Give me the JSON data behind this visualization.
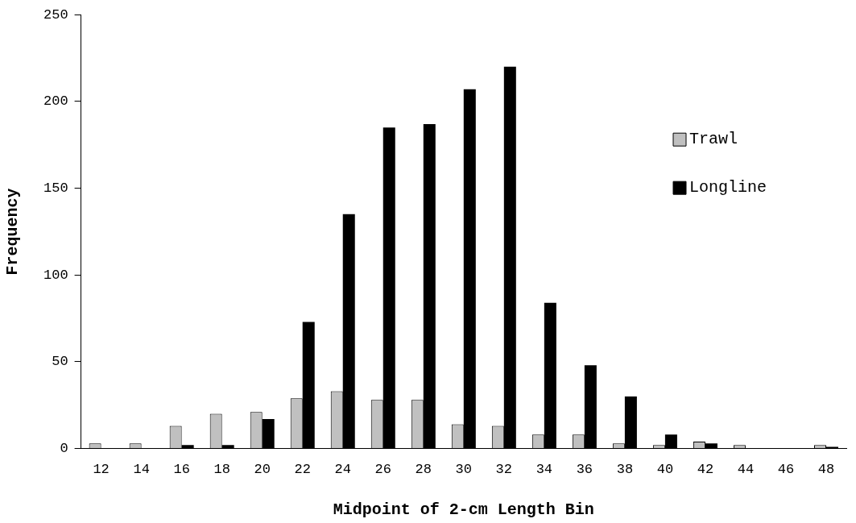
{
  "chart_data": {
    "type": "bar",
    "xlabel": "Midpoint of 2-cm Length Bin",
    "ylabel": "Frequency",
    "categories": [
      "12",
      "14",
      "16",
      "18",
      "20",
      "22",
      "24",
      "26",
      "28",
      "30",
      "32",
      "34",
      "36",
      "38",
      "40",
      "42",
      "44",
      "46",
      "48"
    ],
    "series": [
      {
        "name": "Trawl",
        "color": "#c0c0c0",
        "values": [
          3,
          3,
          13,
          20,
          21,
          29,
          33,
          28,
          28,
          14,
          13,
          8,
          8,
          3,
          2,
          4,
          2,
          0,
          2
        ]
      },
      {
        "name": "Longline",
        "color": "#000000",
        "values": [
          0,
          0,
          2,
          2,
          17,
          73,
          135,
          185,
          187,
          207,
          220,
          84,
          48,
          30,
          8,
          3,
          0,
          0,
          1
        ]
      }
    ],
    "ylim": [
      0,
      250
    ],
    "yticks": [
      0,
      50,
      100,
      150,
      200,
      250
    ],
    "grid": false,
    "legend": "top right"
  }
}
